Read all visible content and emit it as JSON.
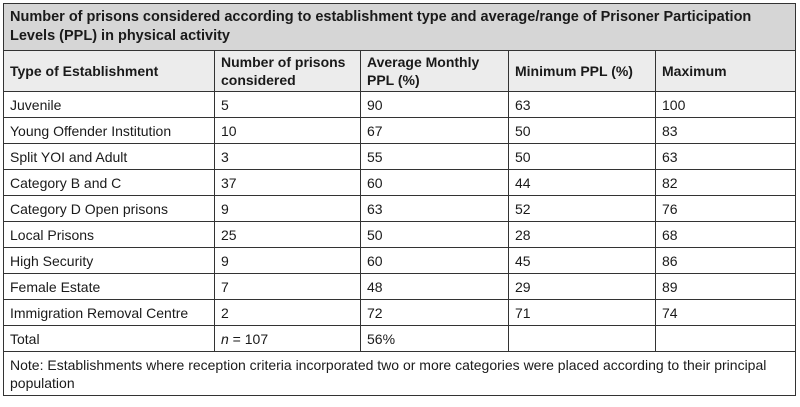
{
  "table": {
    "title": "Number of prisons considered according to establishment type and average/range of Prisoner Participation Levels (PPL) in physical activity",
    "headers": [
      "Type of Establishment",
      "Number of prisons considered",
      "Average Monthly PPL (%)",
      "Minimum PPL (%)",
      "Maximum"
    ],
    "rows": [
      [
        "Juvenile",
        "5",
        "90",
        "63",
        "100"
      ],
      [
        "Young Offender Institution",
        "10",
        "67",
        "50",
        "83"
      ],
      [
        "Split YOI and Adult",
        "3",
        "55",
        "50",
        "63"
      ],
      [
        "Category B and C",
        "37",
        "60",
        "44",
        "82"
      ],
      [
        "Category D Open prisons",
        "9",
        "63",
        "52",
        "76"
      ],
      [
        "Local Prisons",
        "25",
        "50",
        "28",
        "68"
      ],
      [
        "High Security",
        "9",
        "60",
        "45",
        "86"
      ],
      [
        "Female Estate",
        "7",
        "48",
        "29",
        "89"
      ],
      [
        "Immigration Removal Centre",
        "2",
        "72",
        "71",
        "74"
      ]
    ],
    "total": {
      "label": "Total",
      "n_symbol": "n",
      "n_value": " = 107",
      "average": "56%",
      "minimum": "",
      "maximum": ""
    },
    "note": "Note: Establishments where reception criteria incorporated two or more categories were placed according to their principal population"
  }
}
